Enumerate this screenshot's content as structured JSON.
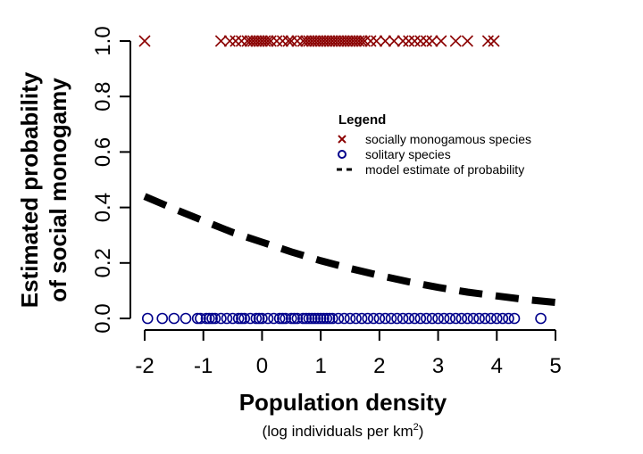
{
  "chart_data": {
    "type": "scatter",
    "xlabel": "Population density",
    "xlabel_sub": "(log individuals per km",
    "xlabel_sub_sup": "2",
    "xlabel_sub_close": ")",
    "ylabel_line1": "Estimated probability",
    "ylabel_line2": "of social monogamy",
    "xlim": [
      -2,
      5
    ],
    "ylim": [
      0,
      1
    ],
    "x_ticks": [
      -2,
      -1,
      0,
      1,
      2,
      3,
      4,
      5
    ],
    "x_tick_labels": [
      "-2",
      "-1",
      "0",
      "1",
      "2",
      "3",
      "4",
      "5"
    ],
    "y_ticks": [
      0,
      0.2,
      0.4,
      0.6,
      0.8,
      1.0
    ],
    "y_tick_labels": [
      "0.0",
      "0.2",
      "0.4",
      "0.6",
      "0.8",
      "1.0"
    ],
    "grid": false,
    "legend": {
      "title": "Legend",
      "placement": "right",
      "entries": [
        {
          "label": "socially monogamous species",
          "symbol": "x",
          "color": "#8b0000"
        },
        {
          "label": "solitary species",
          "symbol": "o",
          "color": "#00008b"
        },
        {
          "label": "model estimate of probability",
          "symbol": "dashed-line",
          "color": "#000000"
        }
      ]
    },
    "series": [
      {
        "marker": "x",
        "color": "#8b0000",
        "y_value": 1,
        "x": [
          -2.0,
          -0.7,
          -0.55,
          -0.45,
          -0.35,
          -0.25,
          -0.2,
          -0.15,
          -0.1,
          -0.05,
          0.0,
          0.05,
          0.1,
          0.15,
          0.25,
          0.35,
          0.45,
          0.5,
          0.6,
          0.7,
          0.75,
          0.8,
          0.85,
          0.9,
          0.95,
          1.0,
          1.05,
          1.1,
          1.15,
          1.2,
          1.25,
          1.3,
          1.35,
          1.4,
          1.45,
          1.5,
          1.55,
          1.6,
          1.65,
          1.7,
          1.75,
          1.85,
          1.95,
          2.1,
          2.25,
          2.4,
          2.5,
          2.6,
          2.7,
          2.8,
          2.9,
          3.05,
          3.3,
          3.5,
          3.85,
          3.95
        ]
      },
      {
        "marker": "o",
        "color": "#00008b",
        "y_value": 0,
        "x": [
          -1.95,
          -1.7,
          -1.5,
          -1.3,
          -1.1,
          -1.05,
          -0.95,
          -0.9,
          -0.85,
          -0.8,
          -0.7,
          -0.6,
          -0.5,
          -0.4,
          -0.35,
          -0.3,
          -0.2,
          -0.1,
          -0.05,
          0.0,
          0.1,
          0.2,
          0.3,
          0.35,
          0.4,
          0.5,
          0.55,
          0.6,
          0.7,
          0.75,
          0.8,
          0.85,
          0.9,
          0.95,
          1.0,
          1.05,
          1.1,
          1.15,
          1.2,
          1.3,
          1.4,
          1.5,
          1.6,
          1.7,
          1.8,
          1.9,
          2.0,
          2.1,
          2.2,
          2.3,
          2.4,
          2.5,
          2.6,
          2.7,
          2.8,
          2.9,
          3.0,
          3.1,
          3.2,
          3.3,
          3.4,
          3.5,
          3.6,
          3.7,
          3.8,
          3.9,
          4.0,
          4.1,
          4.2,
          4.3,
          4.75
        ]
      },
      {
        "marker": "dashed-line",
        "color": "#000000",
        "x": [
          -2.0,
          -1.5,
          -1.0,
          -0.5,
          0.0,
          0.5,
          1.0,
          1.5,
          2.0,
          2.5,
          3.0,
          3.5,
          4.0,
          4.5,
          5.0
        ],
        "y": [
          0.44,
          0.395,
          0.352,
          0.31,
          0.275,
          0.24,
          0.208,
          0.18,
          0.155,
          0.132,
          0.112,
          0.095,
          0.081,
          0.068,
          0.058
        ]
      }
    ]
  }
}
